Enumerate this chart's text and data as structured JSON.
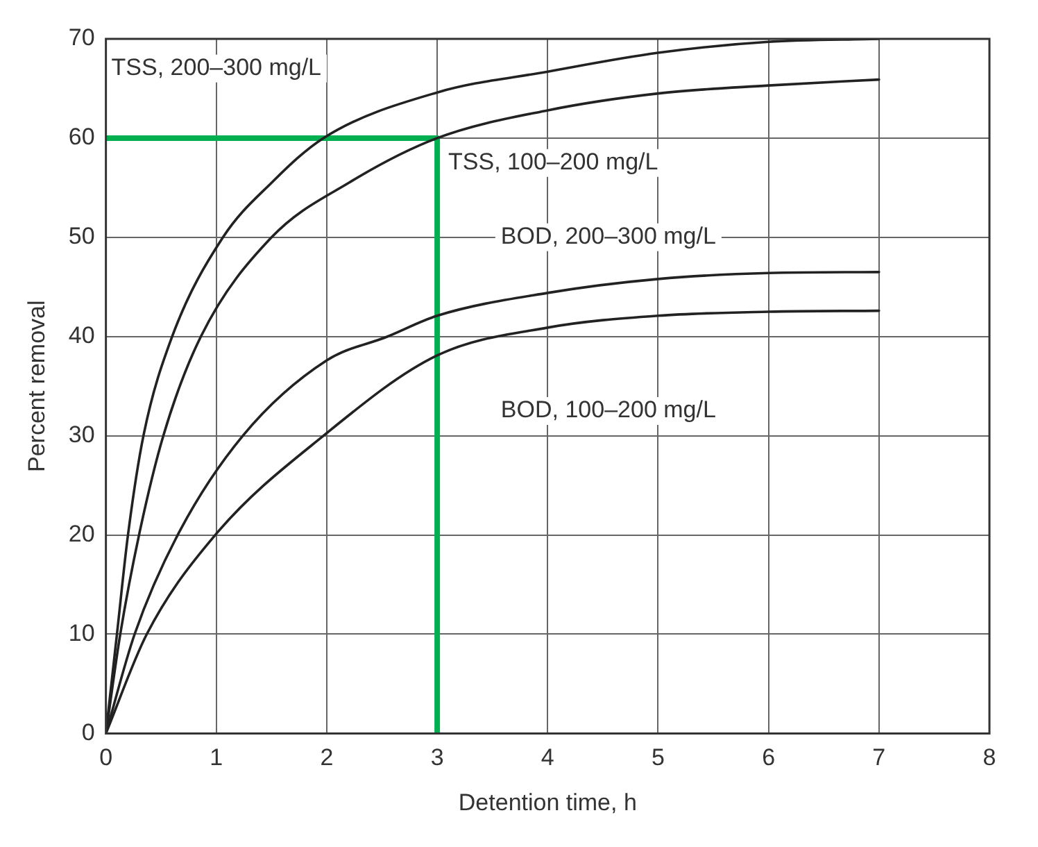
{
  "chart_data": {
    "type": "line",
    "xlabel": "Detention time, h",
    "ylabel": "Percent removal",
    "xlim": [
      0,
      8
    ],
    "xticks": [
      0,
      1,
      2,
      3,
      4,
      5,
      6,
      7,
      8
    ],
    "ylim": [
      0,
      70
    ],
    "yticks": [
      0,
      10,
      20,
      30,
      40,
      50,
      60,
      70
    ],
    "grid": true,
    "legend": false,
    "marker": "none",
    "line_style": "solid",
    "series": [
      {
        "name": "TSS, 200–300 mg/L",
        "color": "#222222",
        "x": [
          0,
          0.1,
          0.2,
          0.34,
          0.6,
          1.06,
          1.5,
          1.97,
          3,
          4,
          5,
          6,
          7
        ],
        "values": [
          0,
          10,
          20,
          30,
          40,
          50,
          55.5,
          60,
          64.6,
          66.7,
          68.6,
          69.7,
          70
        ]
      },
      {
        "name": "TSS, 100–200 mg/L",
        "color": "#222222",
        "x": [
          0,
          0.13,
          0.3,
          0.52,
          0.86,
          1.5,
          2.2,
          3,
          4,
          5,
          6,
          7
        ],
        "values": [
          0,
          10,
          20,
          30,
          40,
          50,
          55.5,
          60,
          62.8,
          64.5,
          65.3,
          65.9
        ]
      },
      {
        "name": "BOD, 200–300 mg/L",
        "color": "#222222",
        "x": [
          0,
          0.26,
          0.65,
          1.24,
          2,
          2.55,
          3,
          4,
          5,
          6,
          7
        ],
        "values": [
          0,
          10,
          20,
          30,
          37.6,
          40,
          42.1,
          44.4,
          45.8,
          46.4,
          46.5
        ]
      },
      {
        "name": "BOD, 100–200 mg/L",
        "color": "#222222",
        "x": [
          0,
          0.37,
          0.99,
          1.97,
          3,
          4,
          5,
          6,
          7
        ],
        "values": [
          0,
          10,
          20,
          30,
          38.1,
          40.9,
          42.1,
          42.5,
          42.6
        ]
      },
      {
        "color": "#00b050",
        "x": [
          0,
          3,
          3
        ],
        "values": [
          60,
          60,
          0
        ]
      }
    ]
  }
}
